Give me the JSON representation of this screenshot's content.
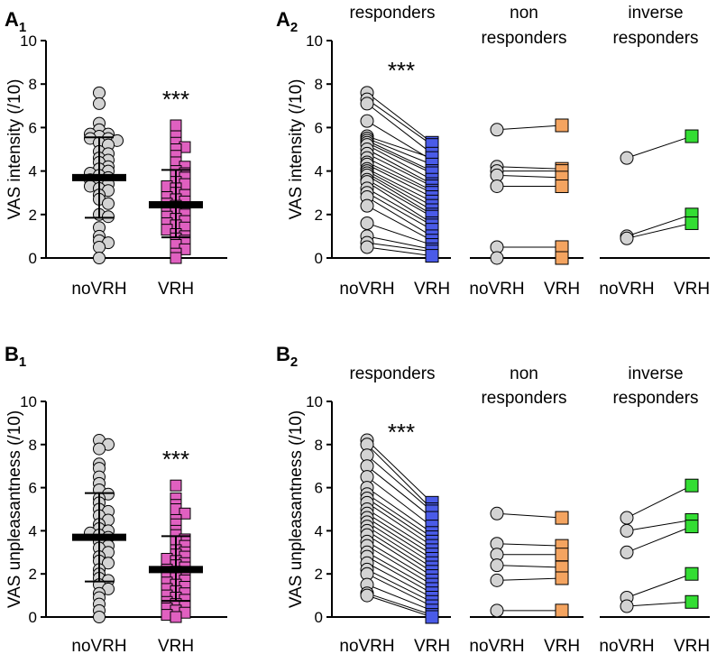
{
  "chart_data": [
    {
      "id": "A1",
      "type": "scatter",
      "title": "",
      "panel_label": {
        "main": "A",
        "sub": "1"
      },
      "ylabel": "VAS intensity (/10)",
      "ylim": [
        0,
        10
      ],
      "yticks": [
        "0",
        "2",
        "4",
        "6",
        "8",
        "10"
      ],
      "categories": [
        "noVRH",
        "VRH"
      ],
      "significance": {
        "text": "***",
        "over": "VRH"
      },
      "series": [
        {
          "name": "noVRH",
          "marker": "circle",
          "color": "#d3d3d3",
          "mean": 3.7,
          "sd_low": 1.85,
          "sd_high": 5.55,
          "values": [
            7.6,
            7.1,
            6.2,
            5.9,
            5.7,
            5.7,
            5.6,
            5.5,
            5.5,
            5.4,
            5.3,
            5.2,
            4.9,
            4.8,
            4.6,
            4.5,
            4.4,
            4.2,
            4.1,
            4.0,
            3.9,
            3.8,
            3.7,
            3.6,
            3.5,
            3.4,
            3.3,
            3.2,
            3.1,
            2.9,
            2.7,
            2.5,
            2.0,
            1.9,
            1.4,
            1.0,
            0.8,
            0.7,
            0.5,
            0.0
          ]
        },
        {
          "name": "VRH",
          "marker": "square",
          "color": "#e060c0",
          "mean": 2.45,
          "sd_low": 0.95,
          "sd_high": 4.05,
          "values": [
            6.1,
            5.6,
            5.3,
            5.1,
            5.0,
            4.7,
            4.4,
            4.2,
            4.0,
            3.9,
            3.8,
            3.7,
            3.5,
            3.4,
            3.3,
            3.2,
            3.0,
            2.9,
            2.8,
            2.7,
            2.6,
            2.5,
            2.4,
            2.3,
            2.2,
            2.1,
            2.0,
            1.9,
            1.8,
            1.7,
            1.6,
            1.5,
            1.4,
            1.3,
            1.1,
            1.0,
            0.9,
            0.8,
            0.6,
            0.4,
            0.2,
            0.0
          ]
        }
      ]
    },
    {
      "id": "A2",
      "type": "line",
      "title": "",
      "panel_label": {
        "main": "A",
        "sub": "2"
      },
      "ylabel": "VAS intensity (/10)",
      "ylim": [
        0,
        10
      ],
      "yticks": [
        "0",
        "2",
        "4",
        "6",
        "8",
        "10"
      ],
      "groups": [
        {
          "name": "responders",
          "title_lines": [
            "responders"
          ],
          "color": "#4a5be8",
          "significance": "***",
          "xlabels": [
            "noVRH",
            "VRH"
          ],
          "pairs": [
            [
              7.6,
              5.3
            ],
            [
              7.3,
              5.2
            ],
            [
              7.1,
              4.8
            ],
            [
              6.3,
              4.5
            ],
            [
              5.6,
              4.6
            ],
            [
              5.5,
              4.3
            ],
            [
              5.4,
              4.0
            ],
            [
              5.3,
              3.9
            ],
            [
              5.2,
              3.6
            ],
            [
              5.0,
              3.4
            ],
            [
              4.8,
              3.3
            ],
            [
              4.6,
              3.1
            ],
            [
              4.4,
              3.0
            ],
            [
              4.3,
              2.8
            ],
            [
              4.1,
              2.6
            ],
            [
              4.0,
              2.4
            ],
            [
              3.9,
              2.2
            ],
            [
              3.8,
              2.0
            ],
            [
              3.6,
              1.9
            ],
            [
              3.5,
              1.6
            ],
            [
              3.2,
              1.5
            ],
            [
              3.0,
              1.3
            ],
            [
              2.8,
              1.0
            ],
            [
              2.4,
              0.8
            ],
            [
              1.6,
              0.6
            ],
            [
              1.0,
              0.4
            ],
            [
              0.7,
              0.3
            ],
            [
              0.5,
              0.1
            ]
          ]
        },
        {
          "name": "non responders",
          "title_lines": [
            "non",
            "responders"
          ],
          "color": "#f4a460",
          "significance": "",
          "xlabels": [
            "noVRH",
            "VRH"
          ],
          "pairs": [
            [
              5.9,
              6.1
            ],
            [
              4.2,
              4.1
            ],
            [
              4.0,
              4.0
            ],
            [
              3.8,
              3.7
            ],
            [
              3.3,
              3.3
            ],
            [
              0.5,
              0.5
            ],
            [
              0.0,
              0.0
            ]
          ]
        },
        {
          "name": "inverse responders",
          "title_lines": [
            "inverse",
            "responders"
          ],
          "color": "#33dd33",
          "significance": "",
          "xlabels": [
            "noVRH",
            "VRH"
          ],
          "pairs": [
            [
              4.6,
              5.6
            ],
            [
              1.0,
              2.0
            ],
            [
              0.9,
              1.6
            ]
          ]
        }
      ]
    },
    {
      "id": "B1",
      "type": "scatter",
      "title": "",
      "panel_label": {
        "main": "B",
        "sub": "1"
      },
      "ylabel": "VAS unpleasantness (/10)",
      "ylim": [
        0,
        10
      ],
      "yticks": [
        "0",
        "2",
        "4",
        "6",
        "8",
        "10"
      ],
      "categories": [
        "noVRH",
        "VRH"
      ],
      "significance": {
        "text": "***",
        "over": "VRH"
      },
      "series": [
        {
          "name": "noVRH",
          "marker": "circle",
          "color": "#d3d3d3",
          "mean": 3.7,
          "sd_low": 1.65,
          "sd_high": 5.75,
          "values": [
            8.2,
            8.0,
            7.8,
            7.1,
            6.9,
            6.5,
            6.2,
            5.9,
            5.7,
            5.5,
            5.3,
            5.0,
            4.9,
            4.7,
            4.5,
            4.3,
            4.1,
            4.0,
            3.9,
            3.8,
            3.7,
            3.5,
            3.3,
            3.2,
            3.0,
            2.8,
            2.6,
            2.5,
            2.2,
            2.0,
            1.8,
            1.7,
            1.5,
            1.3,
            1.1,
            0.9,
            0.6,
            0.3,
            0.0
          ]
        },
        {
          "name": "VRH",
          "marker": "square",
          "color": "#e060c0",
          "mean": 2.2,
          "sd_low": 0.75,
          "sd_high": 3.75,
          "values": [
            6.1,
            5.5,
            5.2,
            5.0,
            4.8,
            4.5,
            4.3,
            4.0,
            3.8,
            3.6,
            3.5,
            3.3,
            3.1,
            3.0,
            2.9,
            2.8,
            2.7,
            2.6,
            2.5,
            2.4,
            2.3,
            2.2,
            2.1,
            2.0,
            1.9,
            1.8,
            1.7,
            1.6,
            1.5,
            1.4,
            1.3,
            1.2,
            1.1,
            1.0,
            0.9,
            0.8,
            0.7,
            0.6,
            0.5,
            0.4,
            0.3,
            0.2,
            0.1,
            0.0
          ]
        }
      ]
    },
    {
      "id": "B2",
      "type": "line",
      "title": "",
      "panel_label": {
        "main": "B",
        "sub": "2"
      },
      "ylabel": "VAS unpleasantness (/10)",
      "ylim": [
        0,
        10
      ],
      "yticks": [
        "0",
        "2",
        "4",
        "6",
        "8",
        "10"
      ],
      "groups": [
        {
          "name": "responders",
          "title_lines": [
            "responders"
          ],
          "color": "#4a5be8",
          "significance": "***",
          "xlabels": [
            "noVRH",
            "VRH"
          ],
          "pairs": [
            [
              8.2,
              5.3
            ],
            [
              8.0,
              5.0
            ],
            [
              7.5,
              4.9
            ],
            [
              7.0,
              4.6
            ],
            [
              6.5,
              4.2
            ],
            [
              6.0,
              3.9
            ],
            [
              5.7,
              3.7
            ],
            [
              5.5,
              3.5
            ],
            [
              5.3,
              3.3
            ],
            [
              5.0,
              3.1
            ],
            [
              4.8,
              2.9
            ],
            [
              4.6,
              2.7
            ],
            [
              4.4,
              2.5
            ],
            [
              4.2,
              2.3
            ],
            [
              4.0,
              2.1
            ],
            [
              3.8,
              1.9
            ],
            [
              3.5,
              1.7
            ],
            [
              3.3,
              1.5
            ],
            [
              3.0,
              1.3
            ],
            [
              2.8,
              1.1
            ],
            [
              2.5,
              0.9
            ],
            [
              2.2,
              0.7
            ],
            [
              2.0,
              0.5
            ],
            [
              1.5,
              0.3
            ],
            [
              1.1,
              0.1
            ],
            [
              1.0,
              0.0
            ]
          ]
        },
        {
          "name": "non responders",
          "title_lines": [
            "non",
            "responders"
          ],
          "color": "#f4a460",
          "significance": "",
          "xlabels": [
            "noVRH",
            "VRH"
          ],
          "pairs": [
            [
              4.8,
              4.6
            ],
            [
              3.4,
              3.3
            ],
            [
              2.9,
              2.9
            ],
            [
              2.4,
              2.3
            ],
            [
              1.7,
              1.8
            ],
            [
              0.3,
              0.3
            ]
          ]
        },
        {
          "name": "inverse responders",
          "title_lines": [
            "inverse",
            "responders"
          ],
          "color": "#33dd33",
          "significance": "",
          "xlabels": [
            "noVRH",
            "VRH"
          ],
          "pairs": [
            [
              4.6,
              6.1
            ],
            [
              4.0,
              4.5
            ],
            [
              3.0,
              4.2
            ],
            [
              0.9,
              2.0
            ],
            [
              0.5,
              0.7
            ]
          ]
        }
      ]
    }
  ]
}
